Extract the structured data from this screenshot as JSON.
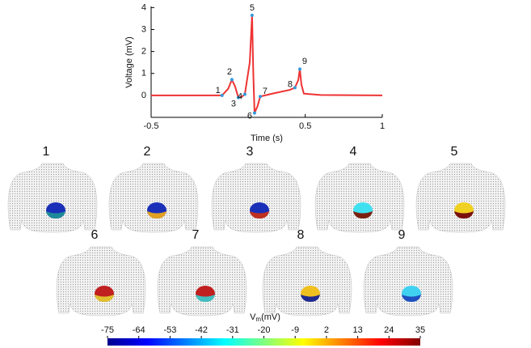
{
  "chart_data": {
    "type": "line",
    "x_label": "Time (s)",
    "y_label": "Voltage (mV)",
    "xlim": [
      -0.5,
      1
    ],
    "ylim": [
      -1,
      4.05
    ],
    "xticks": [
      -0.5,
      0.5,
      1
    ],
    "yticks": [
      0,
      1,
      2,
      3,
      4
    ],
    "series": [
      {
        "color": "#ee3333",
        "x": [
          -0.5,
          -0.065,
          -0.04,
          0.0,
          0.024,
          0.045,
          0.066,
          0.09,
          0.108,
          0.14,
          0.155,
          0.163,
          0.171,
          0.19,
          0.208,
          0.3,
          0.4,
          0.433,
          0.455,
          0.465,
          0.475,
          0.491,
          0.6,
          1.0
        ],
        "values": [
          0,
          0,
          0,
          0.3,
          0.72,
          0.4,
          -0.1,
          -0.05,
          0.05,
          1.5,
          3.65,
          1.0,
          -0.8,
          -0.5,
          -0.05,
          0.1,
          0.25,
          0.35,
          0.7,
          1.2,
          0.5,
          0.08,
          0.02,
          0
        ]
      }
    ],
    "markers": {
      "color": "#3399dd",
      "x": [
        -0.04,
        0.024,
        0.066,
        0.108,
        0.155,
        0.171,
        0.208,
        0.433,
        0.465
      ],
      "values": [
        0,
        0.72,
        -0.1,
        0.05,
        3.65,
        -0.8,
        -0.05,
        0.35,
        1.2
      ],
      "labels": [
        "1",
        "2",
        "3",
        "4",
        "5",
        "6",
        "7",
        "8",
        "9"
      ]
    }
  },
  "panels": [
    {
      "label": "1",
      "colors": [
        "#1a2fb8",
        "#1f8a9a"
      ]
    },
    {
      "label": "2",
      "colors": [
        "#1a2fb8",
        "#e0a020"
      ]
    },
    {
      "label": "3",
      "colors": [
        "#1a2fb8",
        "#c03020"
      ]
    },
    {
      "label": "4",
      "colors": [
        "#40e0f0",
        "#7a2010"
      ]
    },
    {
      "label": "5",
      "colors": [
        "#f0d020",
        "#7a1010"
      ]
    },
    {
      "label": "6",
      "colors": [
        "#c02020",
        "#e0c030"
      ]
    },
    {
      "label": "7",
      "colors": [
        "#c02020",
        "#40c0c0"
      ]
    },
    {
      "label": "8",
      "colors": [
        "#f0c020",
        "#202a90"
      ]
    },
    {
      "label": "9",
      "colors": [
        "#40d0f0",
        "#2050c0"
      ]
    }
  ],
  "colorbar": {
    "label": "V",
    "label_sub": "m",
    "label_unit": "(mV)",
    "lim": [
      -75,
      35
    ],
    "ticks": [
      -75,
      -64,
      -53,
      -42,
      -31,
      -20,
      -9,
      2,
      13,
      24,
      35
    ]
  }
}
